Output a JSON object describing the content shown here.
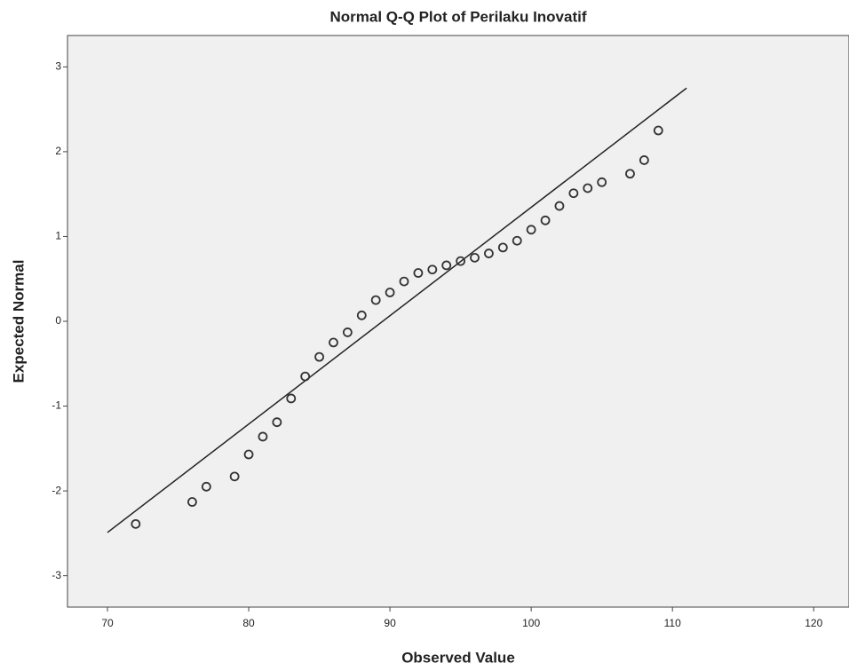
{
  "chart_data": {
    "type": "scatter",
    "title": "Normal Q-Q Plot of Perilaku Inovatif",
    "x_label": "Observed Value",
    "y_label": "Expected Normal",
    "xlim": [
      67.17,
      122.5
    ],
    "ylim": [
      -3.37,
      3.37
    ],
    "xticks": [
      70,
      80,
      90,
      100,
      110,
      120
    ],
    "yticks": [
      -3,
      -2,
      -1,
      0,
      1,
      2,
      3
    ],
    "color": "#333333",
    "background": "#f0f0f0",
    "x": [
      72,
      76,
      77,
      79,
      80,
      81,
      82,
      83,
      84,
      85,
      86,
      87,
      88,
      89,
      90,
      91,
      92,
      93,
      94,
      95,
      96,
      97,
      98,
      99,
      100,
      101,
      102,
      103,
      104,
      105,
      107,
      108,
      109
    ],
    "values": [
      -2.39,
      -2.13,
      -1.95,
      -1.83,
      -1.57,
      -1.36,
      -1.19,
      -0.91,
      -0.65,
      -0.42,
      -0.25,
      -0.13,
      0.07,
      0.25,
      0.34,
      0.47,
      0.57,
      0.61,
      0.66,
      0.71,
      0.75,
      0.8,
      0.87,
      0.95,
      1.08,
      1.19,
      1.36,
      1.51,
      1.57,
      1.64,
      1.74,
      1.9,
      2.25
    ],
    "reference_line": {
      "x": [
        70,
        111
      ],
      "y": [
        -2.49,
        2.75
      ],
      "color": "#222222"
    }
  }
}
